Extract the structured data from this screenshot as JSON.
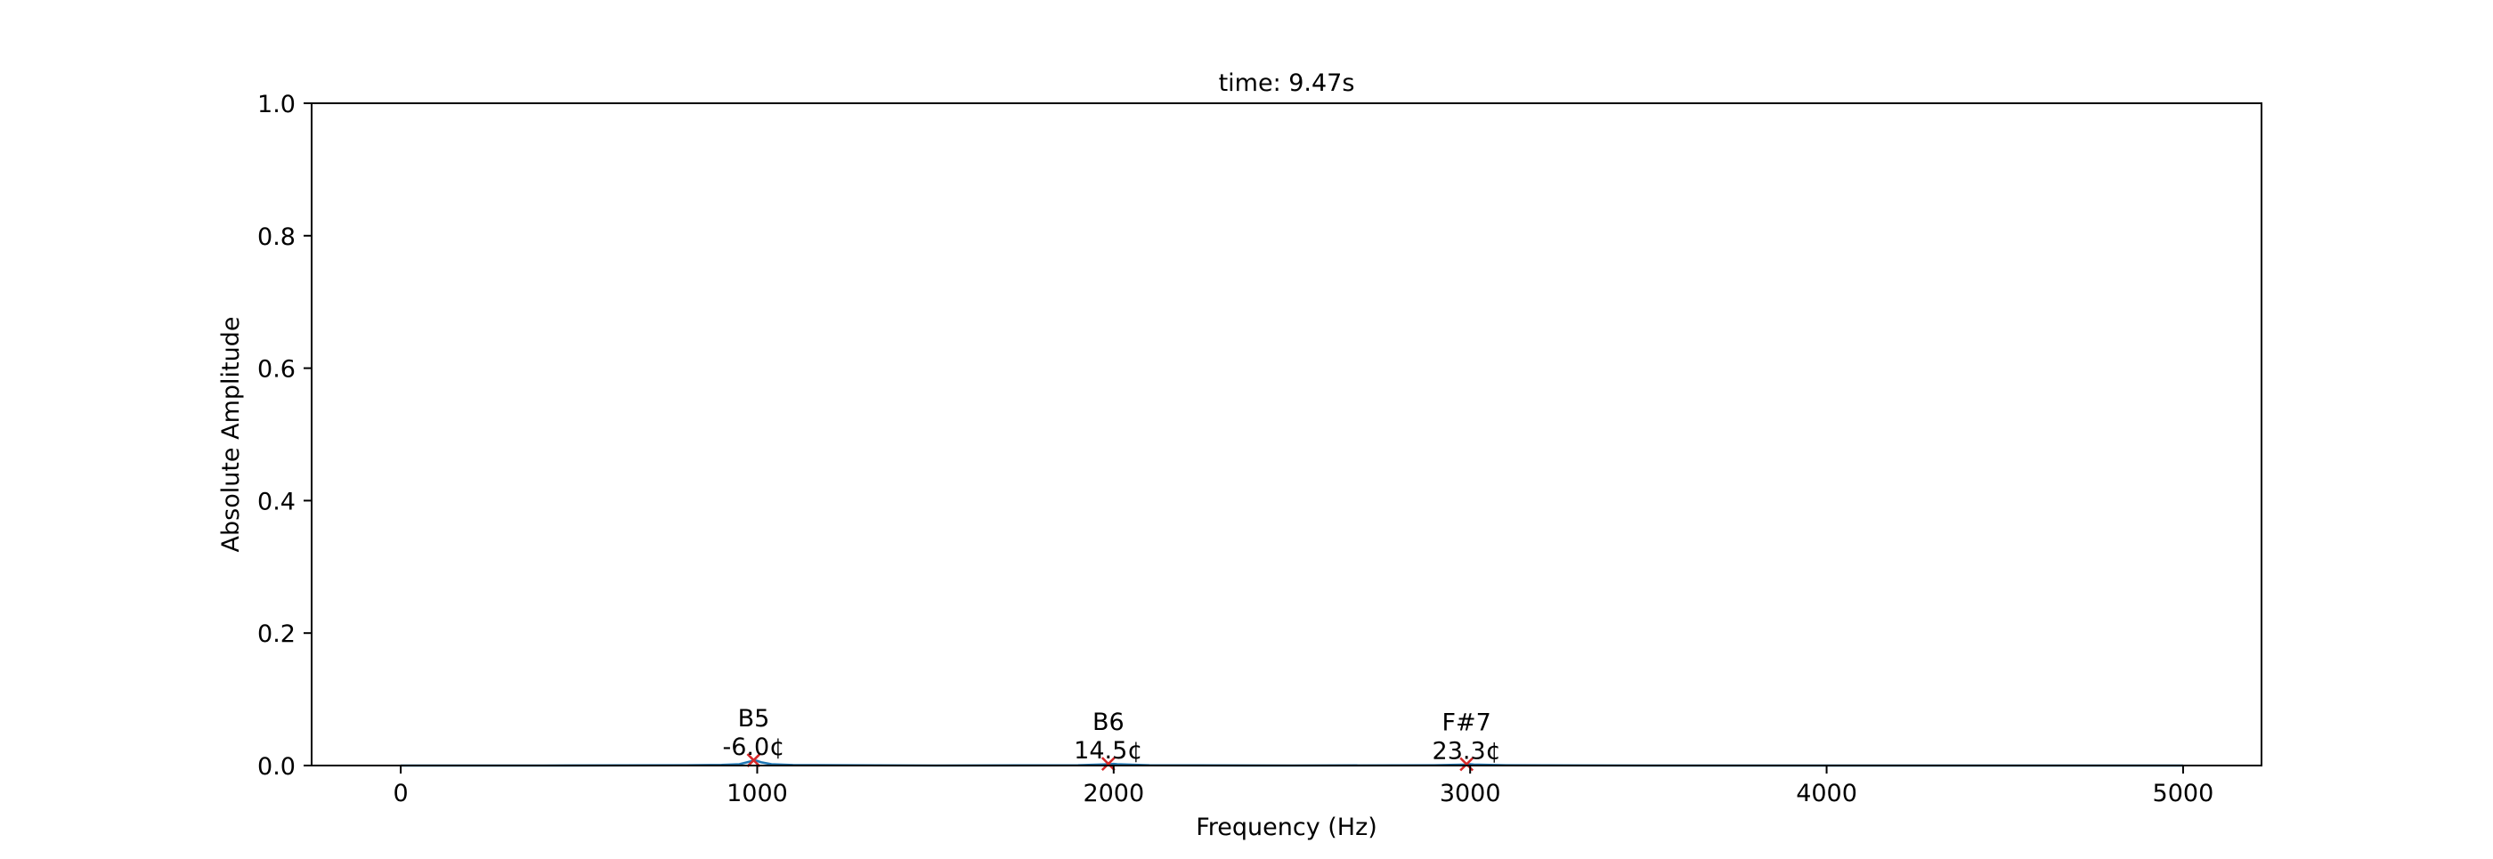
{
  "chart_data": {
    "type": "line",
    "title": "time: 9.47s",
    "xlabel": "Frequency (Hz)",
    "ylabel": "Absolute Amplitude",
    "xlim": [
      -250,
      5220
    ],
    "ylim": [
      0.0,
      1.0
    ],
    "x_ticks": [
      {
        "value": 0,
        "label": "0"
      },
      {
        "value": 1000,
        "label": "1000"
      },
      {
        "value": 2000,
        "label": "2000"
      },
      {
        "value": 3000,
        "label": "3000"
      },
      {
        "value": 4000,
        "label": "4000"
      },
      {
        "value": 5000,
        "label": "5000"
      }
    ],
    "y_ticks": [
      {
        "value": 0.0,
        "label": "0.0"
      },
      {
        "value": 0.2,
        "label": "0.2"
      },
      {
        "value": 0.4,
        "label": "0.4"
      },
      {
        "value": 0.6,
        "label": "0.6"
      },
      {
        "value": 0.8,
        "label": "0.8"
      },
      {
        "value": 1.0,
        "label": "1.0"
      }
    ],
    "grid": false,
    "series": [
      {
        "color": "#1f77b4",
        "x": [
          0,
          400,
          800,
          900,
          950,
          980,
          990,
          1000,
          1010,
          1040,
          1100,
          1500,
          1900,
          1990,
          2000,
          2010,
          2100,
          2500,
          2900,
          2990,
          3000,
          3010,
          3100,
          3500,
          4000,
          4500,
          5000
        ],
        "y": [
          0.0,
          0.0,
          0.0005,
          0.001,
          0.002,
          0.006,
          0.008,
          0.007,
          0.005,
          0.002,
          0.0008,
          0.0,
          0.0004,
          0.002,
          0.0025,
          0.002,
          0.0004,
          0.0,
          0.0004,
          0.0015,
          0.002,
          0.0015,
          0.0004,
          0.0,
          0.0,
          0.0,
          0.0
        ]
      }
    ],
    "peaks": {
      "color": "#d62728",
      "marker": "x",
      "points": [
        {
          "x": 990,
          "y": 0.008,
          "note": "B5",
          "cents": "-6.0¢"
        },
        {
          "x": 1985,
          "y": 0.0025,
          "note": "B6",
          "cents": "14.5¢"
        },
        {
          "x": 2990,
          "y": 0.002,
          "note": "F#7",
          "cents": "23.3¢"
        }
      ]
    }
  }
}
